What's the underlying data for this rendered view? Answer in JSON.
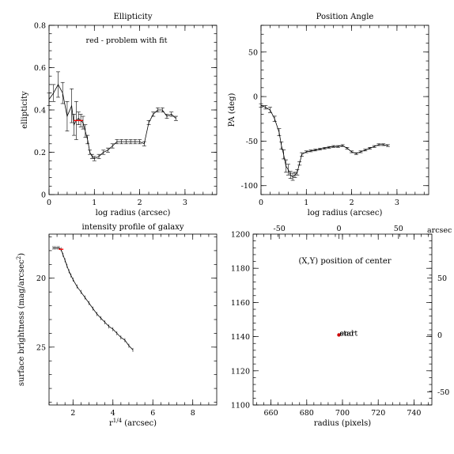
{
  "colors": {
    "ink": "#000000",
    "problem": "#ff0000",
    "center": "#cc0000"
  },
  "chart_data": [
    {
      "type": "line",
      "title": "Ellipticity",
      "xlabel": "log radius (arcsec)",
      "ylabel": "ellipticity",
      "annotation": "red - problem with fit",
      "xlim": [
        0,
        3.7
      ],
      "ylim": [
        0,
        0.8
      ],
      "xticks": [
        0,
        1,
        2,
        3
      ],
      "yticks": [
        0,
        0.2,
        0.4,
        0.6,
        0.8
      ],
      "xtick_labels": [
        "0",
        "1",
        "2",
        "3"
      ],
      "ytick_labels": [
        "0",
        "0.2",
        "0.4",
        "0.6",
        "0.8"
      ],
      "x": [
        0.0,
        0.1,
        0.2,
        0.3,
        0.4,
        0.5,
        0.55,
        0.6,
        0.65,
        0.7,
        0.75,
        0.8,
        0.85,
        0.9,
        0.95,
        1.0,
        1.1,
        1.2,
        1.3,
        1.4,
        1.5,
        1.6,
        1.7,
        1.8,
        1.9,
        2.0,
        2.1,
        2.2,
        2.3,
        2.4,
        2.5,
        2.6,
        2.7,
        2.8
      ],
      "y": [
        0.45,
        0.48,
        0.52,
        0.48,
        0.37,
        0.42,
        0.33,
        0.35,
        0.36,
        0.35,
        0.34,
        0.3,
        0.26,
        0.2,
        0.18,
        0.17,
        0.18,
        0.2,
        0.21,
        0.23,
        0.25,
        0.25,
        0.25,
        0.25,
        0.25,
        0.25,
        0.24,
        0.34,
        0.38,
        0.4,
        0.4,
        0.37,
        0.38,
        0.36
      ],
      "yerr": [
        0.03,
        0.04,
        0.06,
        0.05,
        0.07,
        0.08,
        0.05,
        0.09,
        0.03,
        0.03,
        0.03,
        0.03,
        0.02,
        0.01,
        0.01,
        0.01,
        0.01,
        0.01,
        0.01,
        0.01,
        0.01,
        0.01,
        0.01,
        0.01,
        0.01,
        0.01,
        0.01,
        0.01,
        0.01,
        0.01,
        0.01,
        0.01,
        0.01,
        0.01
      ],
      "flagged_x": [
        0.6,
        0.7
      ]
    },
    {
      "type": "line",
      "title": "Position Angle",
      "xlabel": "log radius (arcsec)",
      "ylabel": "PA (deg)",
      "xlim": [
        0,
        3.7
      ],
      "ylim": [
        -110,
        80
      ],
      "xticks": [
        0,
        1,
        2,
        3
      ],
      "yticks": [
        -100,
        -50,
        0,
        50
      ],
      "xtick_labels": [
        "0",
        "1",
        "2",
        "3"
      ],
      "ytick_labels": [
        "-100",
        "-50",
        "0",
        "50"
      ],
      "x": [
        0.0,
        0.1,
        0.2,
        0.3,
        0.4,
        0.45,
        0.5,
        0.55,
        0.6,
        0.65,
        0.7,
        0.75,
        0.8,
        0.85,
        0.9,
        1.0,
        1.1,
        1.2,
        1.3,
        1.4,
        1.5,
        1.6,
        1.7,
        1.8,
        1.9,
        2.0,
        2.1,
        2.2,
        2.3,
        2.4,
        2.5,
        2.6,
        2.7,
        2.8
      ],
      "y": [
        -10,
        -12,
        -15,
        -25,
        -40,
        -55,
        -65,
        -78,
        -82,
        -88,
        -90,
        -88,
        -85,
        -75,
        -65,
        -62,
        -61,
        -60,
        -59,
        -58,
        -57,
        -56,
        -56,
        -55,
        -58,
        -62,
        -64,
        -62,
        -60,
        -58,
        -56,
        -54,
        -54,
        -55
      ],
      "yerr": [
        2,
        2,
        3,
        3,
        4,
        4,
        5,
        7,
        6,
        4,
        4,
        3,
        3,
        2,
        2,
        1,
        1,
        1,
        1,
        1,
        1,
        1,
        1,
        1,
        1,
        1,
        1,
        1,
        1,
        1,
        1,
        1,
        1,
        1
      ]
    },
    {
      "type": "line",
      "title": "intensity profile of galaxy",
      "xlabel": "r1/4 (arcsec)",
      "ylabel": "surface brightness (mag/arcsec2)",
      "xlim": [
        0.8,
        9.2
      ],
      "ylim": [
        16.8,
        29.2
      ],
      "invert_y": true,
      "xticks": [
        2,
        4,
        6,
        8
      ],
      "yticks": [
        20,
        25
      ],
      "xtick_labels": [
        "2",
        "4",
        "6",
        "8"
      ],
      "ytick_labels": [
        "20",
        "25"
      ],
      "x": [
        1.0,
        1.1,
        1.2,
        1.3,
        1.4,
        1.5,
        1.6,
        1.7,
        1.8,
        1.9,
        2.0,
        2.2,
        2.4,
        2.6,
        2.8,
        3.0,
        3.2,
        3.4,
        3.6,
        3.8,
        4.0,
        4.2,
        4.4,
        4.6,
        4.8,
        5.0
      ],
      "y": [
        17.8,
        17.8,
        17.8,
        17.8,
        17.9,
        18.3,
        18.7,
        19.1,
        19.5,
        19.8,
        20.1,
        20.6,
        21.0,
        21.4,
        21.8,
        22.2,
        22.6,
        22.9,
        23.2,
        23.5,
        23.7,
        24.0,
        24.3,
        24.5,
        24.9,
        25.2
      ],
      "flagged_x": [
        1.4
      ]
    },
    {
      "type": "scatter",
      "title": "(X,Y) position of center",
      "xlabel": "radius (pixels)",
      "xlim": [
        650,
        750
      ],
      "ylim": [
        1100,
        1200
      ],
      "xticks": [
        660,
        680,
        700,
        720,
        740
      ],
      "yticks": [
        1100,
        1120,
        1140,
        1160,
        1180,
        1200
      ],
      "xtick_labels": [
        "660",
        "680",
        "700",
        "720",
        "740"
      ],
      "ytick_labels": [
        "1100",
        "1120",
        "1140",
        "1160",
        "1180",
        "1200"
      ],
      "top_axis": {
        "label": "arcsec",
        "ticks": [
          -50,
          0,
          50
        ],
        "tick_labels": [
          "-50",
          "0",
          "50"
        ]
      },
      "right_axis": {
        "ticks": [
          -50,
          0,
          50
        ],
        "tick_labels": [
          "-50",
          "0",
          "50"
        ]
      },
      "points": [
        {
          "x": 698,
          "y": 1141
        }
      ],
      "point_labels": [
        "start",
        "end"
      ]
    }
  ]
}
